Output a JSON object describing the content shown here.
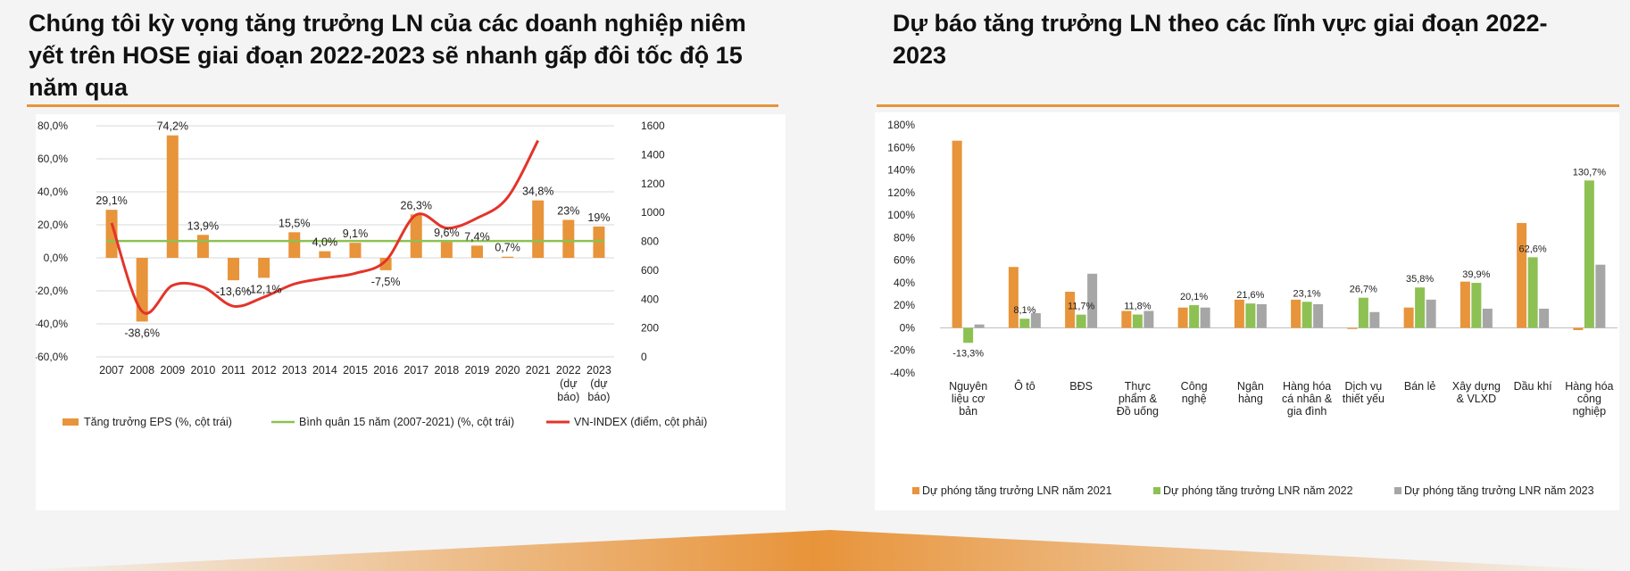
{
  "left": {
    "title": "Chúng tôi kỳ vọng tăng trưởng LN của các doanh nghiệp niêm yết trên HOSE giai đoạn 2022-2023 sẽ nhanh gấp đôi tốc độ 15 năm qua"
  },
  "right": {
    "title": "Dự báo tăng trưởng LN theo các lĩnh vực giai đoạn 2022-2023"
  },
  "colors": {
    "accent": "#e8943a",
    "bar_orange": "#e8943a",
    "avg_green": "#8dc153",
    "index_red": "#e3342a",
    "bar_gray": "#a6a6a6"
  },
  "chart_data": [
    {
      "type": "bar",
      "categories": [
        "2007",
        "2008",
        "2009",
        "2010",
        "2011",
        "2012",
        "2013",
        "2014",
        "2015",
        "2016",
        "2017",
        "2018",
        "2019",
        "2020",
        "2021",
        "2022 (dự báo)",
        "2023 (dự báo)"
      ],
      "series": [
        {
          "name": "Tăng trưởng EPS (%, cột trái)",
          "axis": "left",
          "type": "bar",
          "values": [
            29.1,
            -38.6,
            74.2,
            13.9,
            -13.6,
            -12.1,
            15.5,
            4.0,
            9.1,
            -7.5,
            26.3,
            9.6,
            7.4,
            0.7,
            34.8,
            23,
            19
          ],
          "labels": [
            "29,1%",
            "-38,6%",
            "74,2%",
            "13,9%",
            "-13,6%",
            "-12,1%",
            "15,5%",
            "4,0%",
            "9,1%",
            "-7,5%",
            "26,3%",
            "9,6%",
            "7,4%",
            "0,7%",
            "34,8%",
            "23%",
            "19%"
          ]
        },
        {
          "name": "Bình quân 15 năm (2007-2021) (%, cột trái)",
          "axis": "left",
          "type": "line",
          "value": 10.2
        },
        {
          "name": "VN-INDEX (điểm, cột phải)",
          "axis": "right",
          "type": "line",
          "x": [
            "2007",
            "2008",
            "2009",
            "2010",
            "2011",
            "2012",
            "2013",
            "2014",
            "2015",
            "2016",
            "2017",
            "2018",
            "2019",
            "2020",
            "2021"
          ],
          "values": [
            927,
            315,
            495,
            484,
            351,
            414,
            505,
            545,
            579,
            665,
            984,
            892,
            961,
            1104,
            1498
          ]
        }
      ],
      "y_left": {
        "min": -60,
        "max": 80,
        "step": 20,
        "ticks": [
          "80,0%",
          "60,0%",
          "40,0%",
          "20,0%",
          "0,0%",
          "-20,0%",
          "-40,0%",
          "-60,0%"
        ]
      },
      "y_right": {
        "min": 0,
        "max": 1600,
        "step": 200,
        "ticks": [
          "1600",
          "1400",
          "1200",
          "1000",
          "800",
          "600",
          "400",
          "200",
          "0"
        ]
      },
      "legend_position": "bottom",
      "grid": true
    },
    {
      "type": "bar",
      "categories": [
        "Nguyên liệu cơ bản",
        "Ô tô",
        "BĐS",
        "Thực phẩm & Đồ uống",
        "Công nghệ",
        "Ngân hàng",
        "Hàng hóa cá nhân & gia đình",
        "Dịch vụ thiết yếu",
        "Bán lẻ",
        "Xây dựng & VLXD",
        "Dầu khí",
        "Hàng hóa công nghiệp"
      ],
      "category_lines": [
        [
          "Nguyên",
          "liệu cơ",
          "bản"
        ],
        [
          "Ô tô"
        ],
        [
          "BĐS"
        ],
        [
          "Thực",
          "phẩm &",
          "Đồ uống"
        ],
        [
          "Công",
          "nghệ"
        ],
        [
          "Ngân",
          "hàng"
        ],
        [
          "Hàng hóa",
          "cá nhân &",
          "gia đình"
        ],
        [
          "Dịch vụ",
          "thiết yếu"
        ],
        [
          "Bán lẻ"
        ],
        [
          "Xây dựng",
          "& VLXD"
        ],
        [
          "Dầu khí"
        ],
        [
          "Hàng hóa",
          "công",
          "nghiệp"
        ]
      ],
      "series": [
        {
          "name": "Dự phóng tăng trưởng LNR năm 2021",
          "color": "#e8943a",
          "values": [
            166,
            54,
            32,
            15,
            18,
            25,
            25,
            -1,
            18,
            41,
            93,
            -2
          ]
        },
        {
          "name": "Dự phóng tăng trưởng LNR năm 2022",
          "color": "#8dc153",
          "values": [
            -13.3,
            8.1,
            11.7,
            11.8,
            20.1,
            21.6,
            23.1,
            26.7,
            35.8,
            39.9,
            62.6,
            130.7
          ],
          "labels": [
            "-13,3%",
            "8,1%",
            "11,7%",
            "11,8%",
            "20,1%",
            "21,6%",
            "23,1%",
            "26,7%",
            "35,8%",
            "39,9%",
            "62,6%",
            "130,7%"
          ]
        },
        {
          "name": "Dự phóng tăng trưởng LNR năm 2023",
          "color": "#a6a6a6",
          "values": [
            3,
            13,
            48,
            15,
            18,
            21,
            21,
            14,
            25,
            17,
            17,
            56
          ]
        }
      ],
      "y": {
        "min": -40,
        "max": 180,
        "step": 20,
        "ticks": [
          "180%",
          "160%",
          "140%",
          "120%",
          "100%",
          "80%",
          "60%",
          "40%",
          "20%",
          "0%",
          "-20%",
          "-40%"
        ]
      },
      "legend_position": "bottom",
      "grid": false
    }
  ]
}
